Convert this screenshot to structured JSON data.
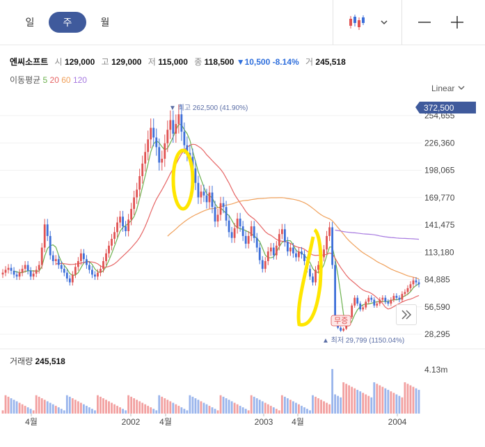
{
  "tabs": [
    {
      "label": "일"
    },
    {
      "label": "주"
    },
    {
      "label": "월"
    }
  ],
  "active_tab": 1,
  "stock": {
    "name": "엔씨소프트",
    "open_label": "시",
    "open": "129,000",
    "high_label": "고",
    "high": "129,000",
    "low_label": "저",
    "low": "115,000",
    "close_label": "종",
    "close": "118,500",
    "change": "▼10,500",
    "change_pct": "-8.14%",
    "volume_label": "거",
    "volume": "245,518"
  },
  "ma": {
    "label": "이동평균",
    "periods": [
      "5",
      "20",
      "60",
      "120"
    ],
    "colors": [
      "#6ab04c",
      "#e66464",
      "#f0a05a",
      "#a678e0"
    ]
  },
  "scale_label": "Linear",
  "colors": {
    "up": "#e05252",
    "down": "#3d6fd9",
    "accent": "#3f5a9c",
    "highlight": "#ffe600"
  },
  "chart_data": {
    "type": "candlestick",
    "y_ticks": [
      254655,
      226360,
      198065,
      169770,
      141475,
      113180,
      84885,
      56590,
      28295
    ],
    "y_tick_labels": [
      "254,655",
      "226,360",
      "198,065",
      "169,770",
      "141,475",
      "113,180",
      "84,885",
      "56,590",
      "28,295"
    ],
    "ylim": [
      28295,
      272000
    ],
    "current_price_label": "372,500",
    "x_labels": [
      "4월",
      "2002",
      "4월",
      "2003",
      "4월",
      "2004"
    ],
    "high_annotation": "▼ 최고 262,500 (41.90%)",
    "low_annotation": "▲ 최저 29,799 (1150.04%)",
    "badge": "무증",
    "closes": [
      92000,
      95000,
      97000,
      94000,
      90000,
      88000,
      92000,
      96000,
      100000,
      94000,
      88000,
      91000,
      95000,
      100000,
      118000,
      142000,
      130000,
      110000,
      104000,
      106000,
      100000,
      96000,
      92000,
      86000,
      82000,
      90000,
      98000,
      104000,
      112000,
      106000,
      100000,
      95000,
      90000,
      88000,
      92000,
      96000,
      104000,
      112000,
      120000,
      127000,
      134000,
      144000,
      150000,
      140000,
      135000,
      147000,
      158000,
      170000,
      178000,
      192000,
      205000,
      217000,
      230000,
      242000,
      232000,
      222000,
      206000,
      210000,
      226000,
      240000,
      250000,
      236000,
      246000,
      256000,
      238000,
      224000,
      216000,
      212000,
      200000,
      185000,
      170000,
      176000,
      172000,
      165000,
      175000,
      160000,
      145000,
      152000,
      164000,
      160000,
      146000,
      134000,
      128000,
      138000,
      148000,
      140000,
      130000,
      122000,
      130000,
      140000,
      128000,
      118000,
      105000,
      96000,
      104000,
      114000,
      118000,
      110000,
      120000,
      132000,
      137000,
      124000,
      114000,
      118000,
      112000,
      108000,
      114000,
      111000,
      104000,
      96000,
      88000,
      82000,
      95000,
      100000,
      108000,
      116000,
      130000,
      139000,
      100000,
      45000,
      35000,
      32000,
      34000,
      38000,
      46000,
      58000,
      66000,
      60000,
      54000,
      56000,
      62000,
      66000,
      64000,
      58000,
      60000,
      64000,
      66000,
      62000,
      60000,
      64000,
      68000,
      66000,
      64000,
      70000,
      72000,
      76000,
      80000,
      84000,
      82000,
      80000
    ],
    "volume_axis_label": "4.13m",
    "vol_ylim": [
      0,
      4130000
    ]
  },
  "volume": {
    "label": "거래량",
    "value": "245,518"
  }
}
